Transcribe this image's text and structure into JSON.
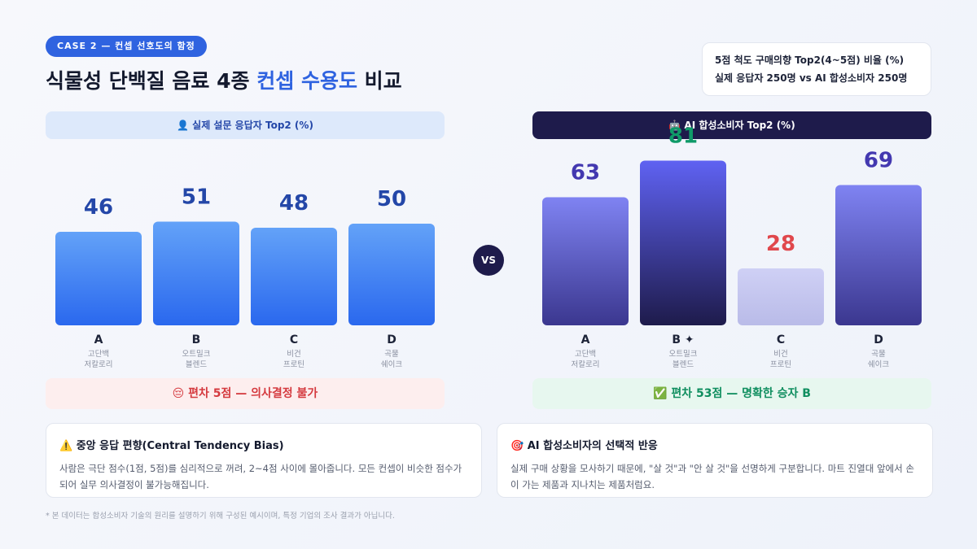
{
  "badge": "CASE 2 — 컨셉 선호도의 함정",
  "title": {
    "before": "식물성 단백질 음료 4종",
    "highlight": "컨셉 수용도",
    "after": "비교"
  },
  "note": [
    "5점 척도 구매의향 Top2(4~5점) 비율 (%)",
    "실제 응답자 250명 vs AI 합성소비자 250명"
  ],
  "vs": "VS",
  "chart_data": [
    {
      "type": "bar",
      "title": "👤 실제 설문 응답자 Top2 (%)",
      "categories": [
        "A",
        "B",
        "C",
        "D"
      ],
      "sublabels": [
        [
          "고단백",
          "저칼로리"
        ],
        [
          "오트밀크",
          "블렌드"
        ],
        [
          "비건",
          "프로틴"
        ],
        [
          "곡물",
          "쉐이크"
        ]
      ],
      "values": [
        46,
        51,
        48,
        50
      ],
      "gradients": [
        [
          "#63a2f8",
          "#2a68ee"
        ],
        [
          "#63a2f8",
          "#2a68ee"
        ],
        [
          "#63a2f8",
          "#2a68ee"
        ],
        [
          "#63a2f8",
          "#2a68ee"
        ]
      ],
      "label_colors": [
        "#2447a8",
        "#2447a8",
        "#2447a8",
        "#2447a8"
      ],
      "result": "😔 편차 5점 — 의사결정 불가"
    },
    {
      "type": "bar",
      "title": "🤖 AI 합성소비자 Top2 (%)",
      "categories": [
        "A",
        "B ✦",
        "C",
        "D"
      ],
      "sublabels": [
        [
          "고단백",
          "저칼로리"
        ],
        [
          "오트밀크",
          "블렌드"
        ],
        [
          "비건",
          "프로틴"
        ],
        [
          "곡물",
          "쉐이크"
        ]
      ],
      "values": [
        63,
        81,
        28,
        69
      ],
      "gradients": [
        [
          "#7f83f2",
          "#3b378f"
        ],
        [
          "#5f62f2",
          "#1e1b4b"
        ],
        [
          "#cfd0f5",
          "#b9bbe8"
        ],
        [
          "#7f83f2",
          "#3b378f"
        ]
      ],
      "label_colors": [
        "#4338b0",
        "#0f9a68",
        "#e0474c",
        "#4338b0"
      ],
      "result": "✅ 편차 53점 — 명확한 승자 B"
    }
  ],
  "cards": [
    {
      "title": "⚠️ 중앙 응답 편향(Central Tendency Bias)",
      "body": "사람은 극단 점수(1점, 5점)를 심리적으로 꺼려, 2~4점 사이에 몰아줍니다. 모든 컨셉이 비슷한 점수가 되어 실무 의사결정이 불가능해집니다."
    },
    {
      "title": "🎯 AI 합성소비자의 선택적 반응",
      "body": "실제 구매 상황을 모사하기 때문에, \"살 것\"과 \"안 살 것\"을 선명하게 구분합니다. 마트 진열대 앞에서 손이 가는 제품과 지나치는 제품처럼요."
    }
  ],
  "footnote": "* 본 데이터는 합성소비자 기술의 원리를 설명하기 위해 구성된 예시이며, 특정 기업의 조사 결과가 아닙니다."
}
